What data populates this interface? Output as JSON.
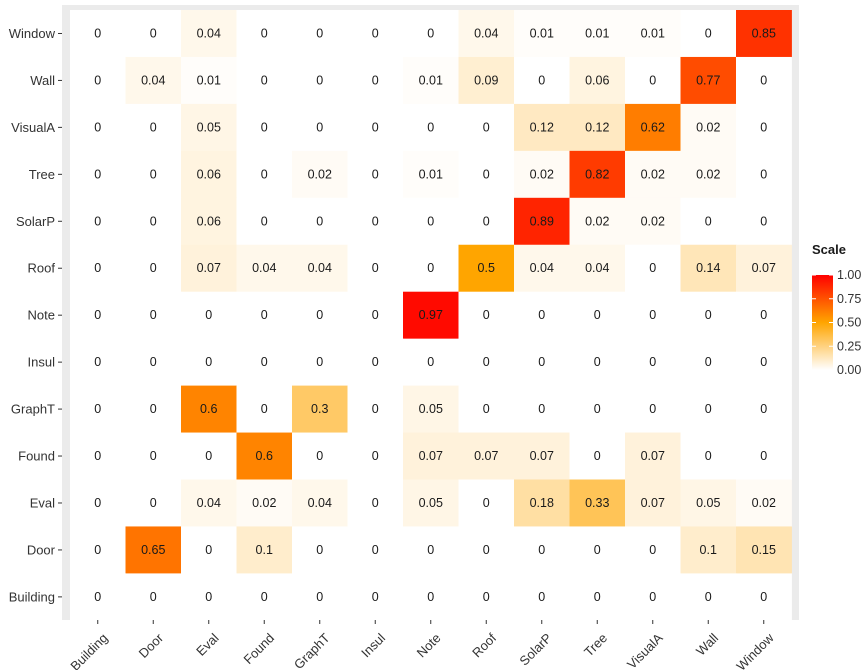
{
  "chart_data": {
    "type": "heatmap",
    "x_categories": [
      "Building",
      "Door",
      "Eval",
      "Found",
      "GraphT",
      "Insul",
      "Note",
      "Roof",
      "SolarP",
      "Tree",
      "VisualA",
      "Wall",
      "Window"
    ],
    "y_categories_top_to_bottom": [
      "Window",
      "Wall",
      "VisualA",
      "Tree",
      "SolarP",
      "Roof",
      "Note",
      "Insul",
      "GraphT",
      "Found",
      "Eval",
      "Door",
      "Building"
    ],
    "values": [
      [
        0,
        0,
        0.04,
        0,
        0,
        0,
        0,
        0.04,
        0.01,
        0.01,
        0.01,
        0,
        0.85
      ],
      [
        0,
        0.04,
        0.01,
        0,
        0,
        0,
        0.01,
        0.09,
        0,
        0.06,
        0,
        0.77,
        0
      ],
      [
        0,
        0,
        0.05,
        0,
        0,
        0,
        0,
        0,
        0.12,
        0.12,
        0.62,
        0.02,
        0
      ],
      [
        0,
        0,
        0.06,
        0,
        0.02,
        0,
        0.01,
        0,
        0.02,
        0.82,
        0.02,
        0.02,
        0
      ],
      [
        0,
        0,
        0.06,
        0,
        0,
        0,
        0,
        0,
        0.89,
        0.02,
        0.02,
        0,
        0
      ],
      [
        0,
        0,
        0.07,
        0.04,
        0.04,
        0,
        0,
        0.5,
        0.04,
        0.04,
        0,
        0.14,
        0.07
      ],
      [
        0,
        0,
        0,
        0,
        0,
        0,
        0.97,
        0,
        0,
        0,
        0,
        0,
        0
      ],
      [
        0,
        0,
        0,
        0,
        0,
        0,
        0,
        0,
        0,
        0,
        0,
        0,
        0
      ],
      [
        0,
        0,
        0.6,
        0,
        0.3,
        0,
        0.05,
        0,
        0,
        0,
        0,
        0,
        0
      ],
      [
        0,
        0,
        0,
        0.6,
        0,
        0,
        0.07,
        0.07,
        0.07,
        0,
        0.07,
        0,
        0
      ],
      [
        0,
        0,
        0.04,
        0.02,
        0.04,
        0,
        0.05,
        0,
        0.18,
        0.33,
        0.07,
        0.05,
        0.02
      ],
      [
        0,
        0.65,
        0,
        0.1,
        0,
        0,
        0,
        0,
        0,
        0,
        0,
        0.1,
        0.15
      ],
      [
        0,
        0,
        0,
        0,
        0,
        0,
        0,
        0,
        0,
        0,
        0,
        0,
        0
      ]
    ],
    "legend": {
      "title": "Scale",
      "placement": "right",
      "range": [
        0,
        1
      ],
      "ticks": [
        1.0,
        0.75,
        0.5,
        0.25,
        0.0
      ],
      "tick_labels": [
        "1.00",
        "0.75",
        "0.50",
        "0.25",
        "0.00"
      ]
    },
    "color_scale": [
      "#ffffff",
      "#ffa500",
      "#ff0000"
    ],
    "panel_background": "#ebebeb",
    "grid": false
  }
}
